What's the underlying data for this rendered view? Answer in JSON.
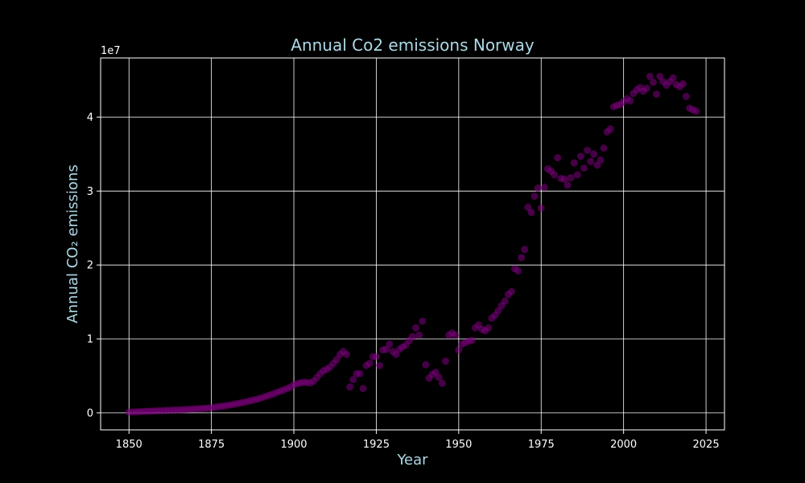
{
  "chart_data": {
    "type": "scatter",
    "title": "Annual Co2 emissions Norway",
    "xlabel": "Year",
    "ylabel": "Annual CO₂ emissions",
    "y_offset_label": "1e7",
    "xlim": [
      1841.4,
      2030.6
    ],
    "ylim": [
      -2300000,
      48000000
    ],
    "x_ticks": [
      1850,
      1875,
      1900,
      1925,
      1950,
      1975,
      2000,
      2025
    ],
    "y_ticks": [
      0,
      10000000,
      20000000,
      30000000,
      40000000
    ],
    "y_tick_labels": [
      "0",
      "1",
      "2",
      "3",
      "4"
    ],
    "grid": true,
    "colors": {
      "background": "#000000",
      "axes": "#ffffff",
      "grid": "#ffffff",
      "title": "#add8e6",
      "axis_label": "#add8e6",
      "tick_label": "#ffffff",
      "marker": "#800080"
    },
    "x": [
      1850,
      1851,
      1852,
      1853,
      1854,
      1855,
      1856,
      1857,
      1858,
      1859,
      1860,
      1861,
      1862,
      1863,
      1864,
      1865,
      1866,
      1867,
      1868,
      1869,
      1870,
      1871,
      1872,
      1873,
      1874,
      1875,
      1876,
      1877,
      1878,
      1879,
      1880,
      1881,
      1882,
      1883,
      1884,
      1885,
      1886,
      1887,
      1888,
      1889,
      1890,
      1891,
      1892,
      1893,
      1894,
      1895,
      1896,
      1897,
      1898,
      1899,
      1900,
      1901,
      1902,
      1903,
      1904,
      1905,
      1906,
      1907,
      1908,
      1909,
      1910,
      1911,
      1912,
      1913,
      1914,
      1915,
      1916,
      1917,
      1918,
      1919,
      1920,
      1921,
      1922,
      1923,
      1924,
      1925,
      1926,
      1927,
      1928,
      1929,
      1930,
      1931,
      1932,
      1933,
      1934,
      1935,
      1936,
      1937,
      1938,
      1939,
      1940,
      1941,
      1942,
      1943,
      1944,
      1945,
      1946,
      1947,
      1948,
      1949,
      1950,
      1951,
      1952,
      1953,
      1954,
      1955,
      1956,
      1957,
      1958,
      1959,
      1960,
      1961,
      1962,
      1963,
      1964,
      1965,
      1966,
      1967,
      1968,
      1969,
      1970,
      1971,
      1972,
      1973,
      1974,
      1975,
      1976,
      1977,
      1978,
      1979,
      1980,
      1981,
      1982,
      1983,
      1984,
      1985,
      1986,
      1987,
      1988,
      1989,
      1990,
      1991,
      1992,
      1993,
      1994,
      1995,
      1996,
      1997,
      1998,
      1999,
      2000,
      2001,
      2002,
      2003,
      2004,
      2005,
      2006,
      2007,
      2008,
      2009,
      2010,
      2011,
      2012,
      2013,
      2014,
      2015,
      2016,
      2017,
      2018,
      2019,
      2020,
      2021,
      2022
    ],
    "y": [
      100000,
      120000,
      140000,
      160000,
      180000,
      200000,
      220000,
      240000,
      260000,
      280000,
      300000,
      320000,
      340000,
      360000,
      380000,
      400000,
      420000,
      450000,
      480000,
      500000,
      520000,
      550000,
      580000,
      610000,
      650000,
      700000,
      760000,
      820000,
      880000,
      950000,
      1020000,
      1100000,
      1180000,
      1260000,
      1350000,
      1450000,
      1550000,
      1650000,
      1750000,
      1860000,
      2000000,
      2150000,
      2300000,
      2450000,
      2600000,
      2800000,
      2950000,
      3100000,
      3300000,
      3500000,
      3800000,
      3950000,
      4050000,
      4150000,
      4100000,
      4050000,
      4300000,
      4800000,
      5300000,
      5700000,
      5900000,
      6200000,
      6700000,
      7200000,
      7900000,
      8300000,
      7900000,
      3500000,
      4500000,
      5300000,
      5300000,
      3300000,
      6400000,
      6700000,
      7600000,
      7600000,
      6400000,
      8500000,
      8600000,
      9300000,
      8300000,
      7900000,
      8600000,
      8900000,
      9200000,
      9800000,
      10300000,
      11500000,
      10500000,
      12400000,
      6500000,
      4700000,
      5200000,
      5500000,
      4800000,
      4000000,
      7000000,
      10500000,
      10800000,
      10500000,
      8500000,
      9300000,
      9500000,
      9700000,
      9800000,
      11500000,
      11900000,
      11300000,
      11100000,
      11500000,
      12800000,
      13200000,
      13800000,
      14500000,
      15100000,
      16000000,
      16400000,
      19500000,
      19200000,
      21000000,
      22100000,
      27800000,
      27100000,
      29300000,
      30400000,
      27700000,
      30500000,
      33000000,
      32700000,
      32200000,
      34500000,
      31700000,
      31600000,
      30800000,
      31800000,
      33800000,
      32200000,
      34700000,
      33100000,
      35500000,
      34000000,
      35000000,
      33500000,
      34200000,
      35800000,
      38000000,
      38400000,
      41400000,
      41600000,
      41700000,
      42100000,
      42500000,
      42200000,
      43200000,
      43700000,
      44000000,
      43500000,
      43900000,
      45500000,
      44700000,
      43100000,
      45500000,
      44800000,
      44300000,
      44800000,
      45300000,
      44400000,
      44100000,
      44500000,
      42800000,
      41200000,
      41000000,
      40800000
    ]
  }
}
